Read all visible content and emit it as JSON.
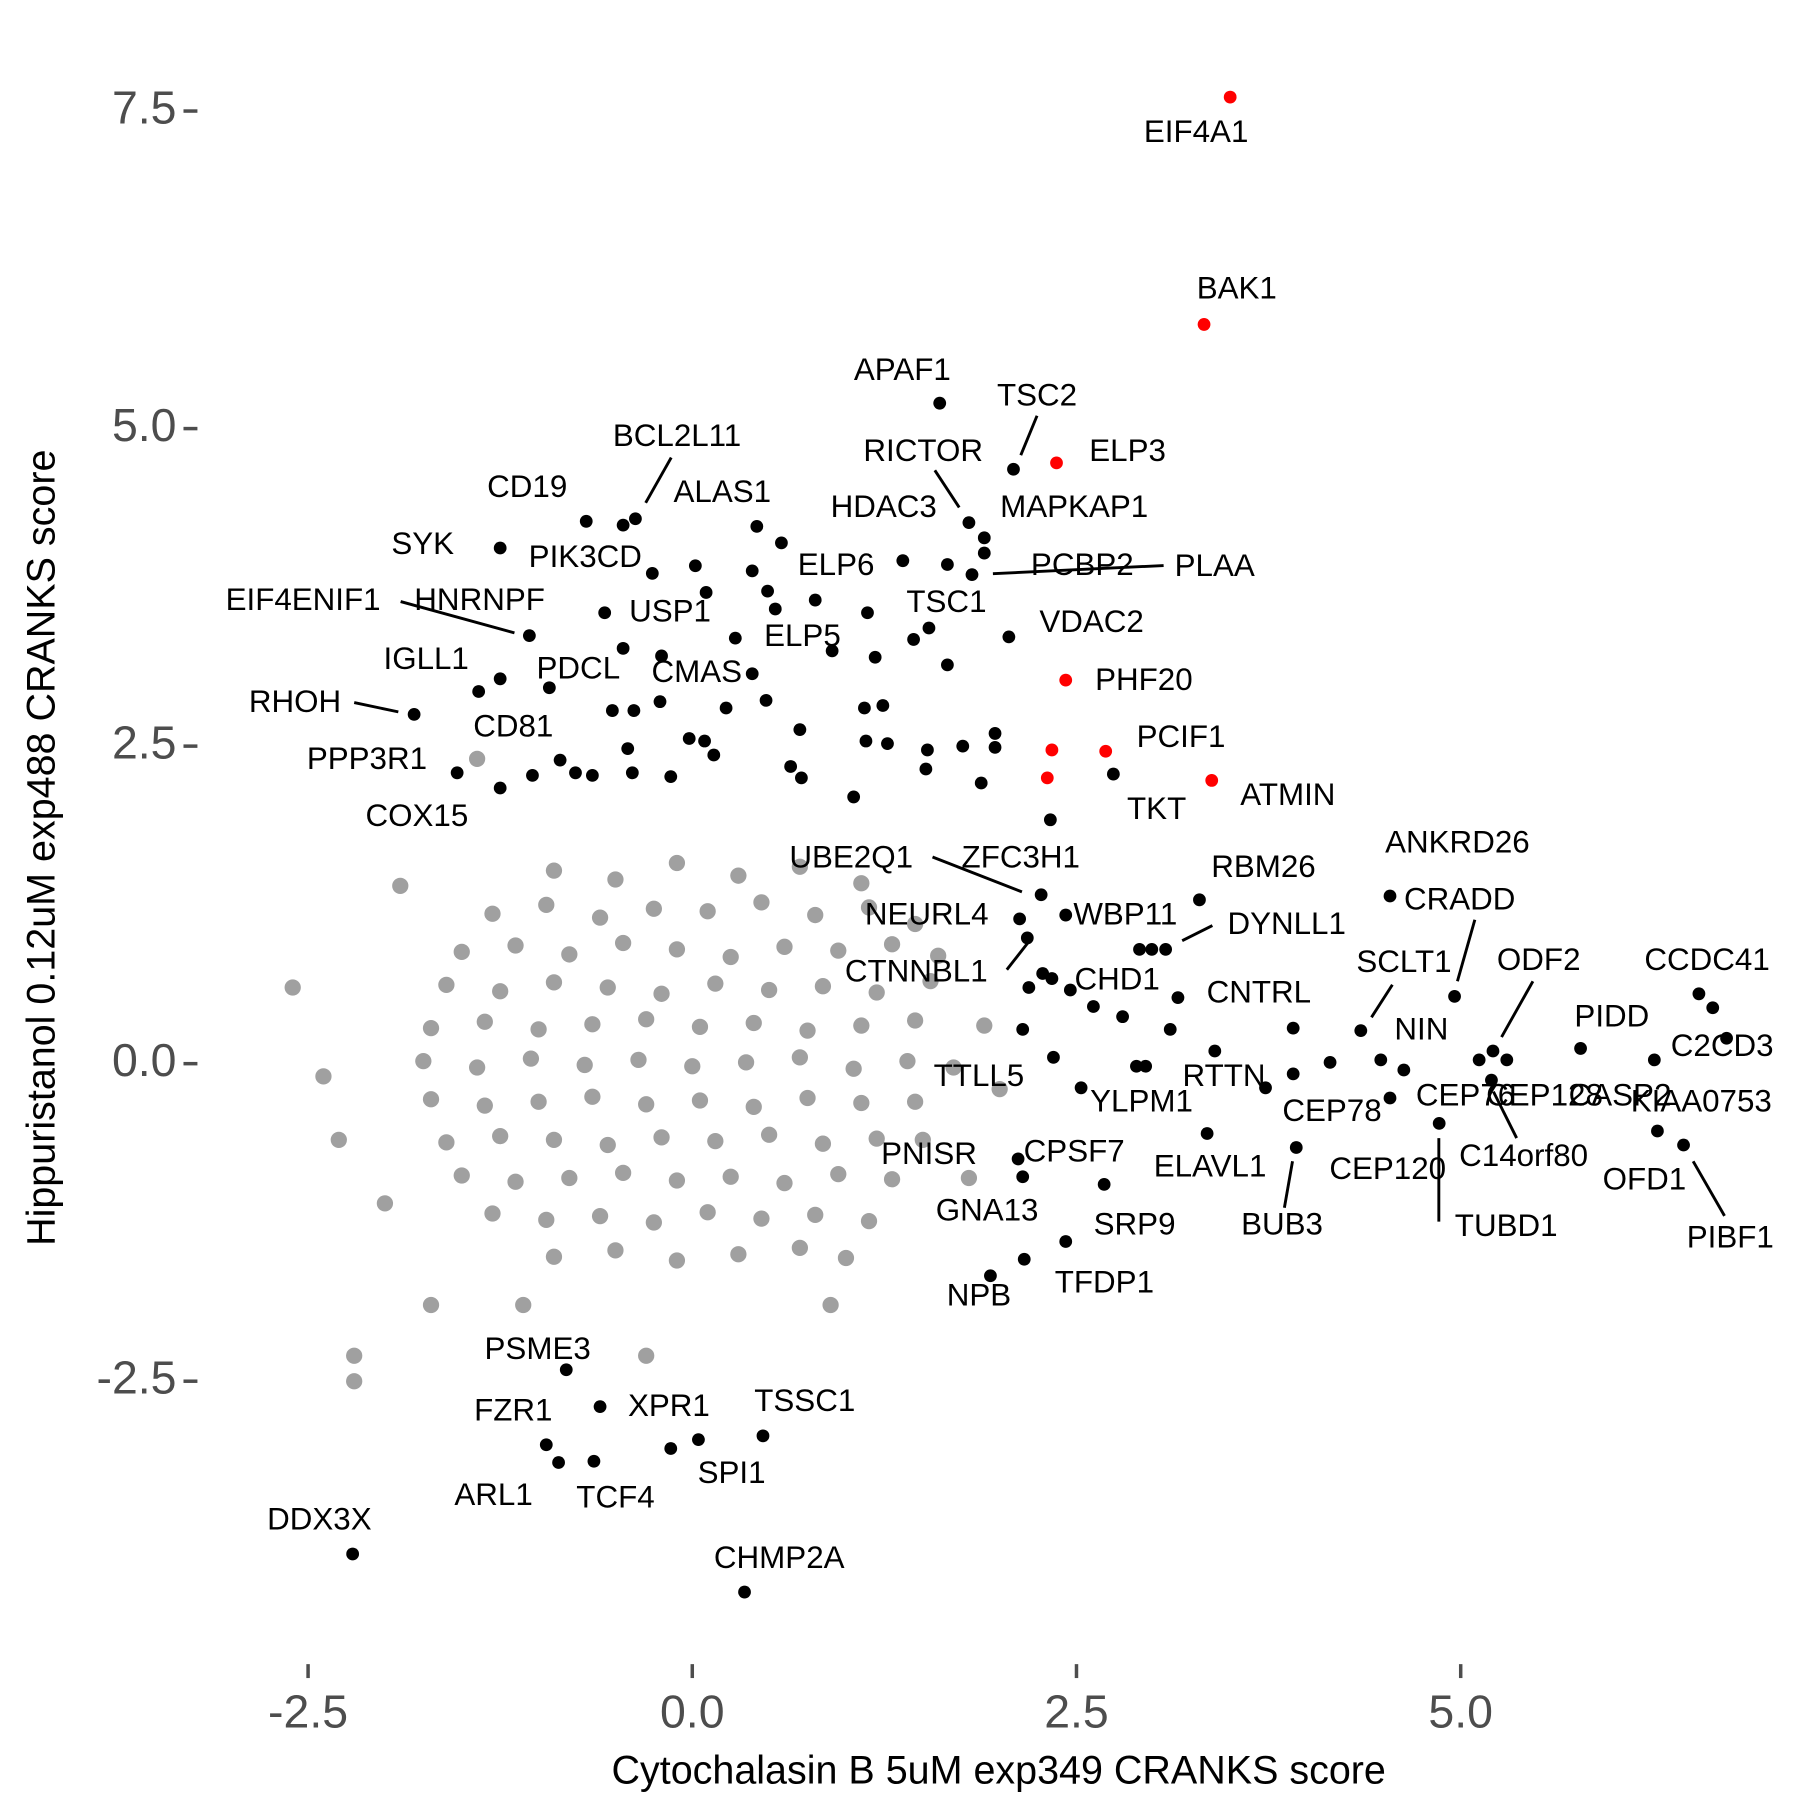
{
  "chart_data": {
    "type": "scatter",
    "xlabel": "Cytochalasin B 5uM exp349 CRANKS score",
    "ylabel": "Hippuristanol 0.12uM exp488 CRANKS score",
    "xlim": [
      -3.22,
      7.17
    ],
    "ylim": [
      -4.7,
      8.1
    ],
    "xticks": [
      -2.5,
      {
        "value": 0,
        "label": "0.0"
      },
      2.5,
      {
        "value": 5,
        "label": "5.0"
      }
    ],
    "yticks": [
      -2.5,
      {
        "value": 0,
        "label": "0.0"
      },
      2.5,
      {
        "value": 5,
        "label": "5.0"
      },
      7.5
    ],
    "grid": false,
    "series": [
      {
        "color": "#a0a0a0",
        "x": [
          -0.9,
          -0.5,
          -0.1,
          0.3,
          0.7,
          1.1,
          -1.3,
          -0.95,
          -0.6,
          -0.25,
          0.1,
          0.45,
          0.8,
          1.15,
          1.45,
          -1.5,
          -1.15,
          -0.8,
          -0.45,
          -0.1,
          0.25,
          0.6,
          0.95,
          1.3,
          1.6,
          -1.6,
          -1.25,
          -0.9,
          -0.55,
          -0.2,
          0.15,
          0.5,
          0.85,
          1.2,
          1.55,
          -1.7,
          -1.35,
          -1.0,
          -0.65,
          -0.3,
          0.05,
          0.4,
          0.75,
          1.1,
          1.45,
          -1.75,
          -1.4,
          -1.05,
          -0.7,
          -0.35,
          0,
          0.35,
          0.7,
          1.05,
          1.4,
          1.7,
          -1.7,
          -1.35,
          -1.0,
          -0.65,
          -0.3,
          0.05,
          0.4,
          0.75,
          1.1,
          1.45,
          -1.6,
          -1.25,
          -0.9,
          -0.55,
          -0.2,
          0.15,
          0.5,
          0.85,
          1.2,
          1.5,
          -1.5,
          -1.15,
          -0.8,
          -0.45,
          -0.1,
          0.25,
          0.6,
          0.95,
          1.3,
          -1.3,
          -0.95,
          -0.6,
          -0.25,
          0.1,
          0.45,
          0.8,
          1.15,
          -0.9,
          -0.5,
          -0.1,
          0.3,
          0.7,
          1.0,
          -2.6,
          -2.4,
          -2.3,
          -2.2,
          -2.0,
          -1.9,
          -1.7,
          -2.2,
          -1.4,
          1.9,
          2.0,
          1.8,
          -0.3,
          0.9,
          -1.1
        ],
        "values": [
          1.52,
          1.45,
          1.58,
          1.48,
          1.55,
          1.42,
          1.18,
          1.25,
          1.15,
          1.22,
          1.2,
          1.27,
          1.17,
          1.23,
          1.1,
          0.88,
          0.93,
          0.86,
          0.95,
          0.9,
          0.84,
          0.92,
          0.89,
          0.94,
          0.85,
          0.62,
          0.57,
          0.64,
          0.6,
          0.55,
          0.63,
          0.58,
          0.61,
          0.56,
          0.65,
          0.28,
          0.33,
          0.27,
          0.31,
          0.35,
          0.29,
          0.32,
          0.26,
          0.3,
          0.34,
          0.02,
          -0.03,
          0.04,
          -0.01,
          0.03,
          -0.02,
          0.01,
          0.05,
          -0.04,
          0.02,
          -0.03,
          -0.28,
          -0.33,
          -0.3,
          -0.26,
          -0.32,
          -0.29,
          -0.34,
          -0.27,
          -0.31,
          -0.3,
          -0.62,
          -0.57,
          -0.6,
          -0.64,
          -0.58,
          -0.61,
          -0.56,
          -0.63,
          -0.59,
          -0.6,
          -0.88,
          -0.93,
          -0.9,
          -0.86,
          -0.92,
          -0.89,
          -0.94,
          -0.87,
          -0.91,
          -1.18,
          -1.23,
          -1.2,
          -1.25,
          -1.17,
          -1.22,
          -1.19,
          -1.24,
          -1.52,
          -1.47,
          -1.55,
          -1.5,
          -1.45,
          -1.53,
          0.6,
          -0.1,
          -0.6,
          -2.3,
          -1.1,
          1.4,
          -1.9,
          -2.5,
          2.4,
          0.3,
          -0.2,
          -0.9,
          -2.3,
          -1.9,
          -1.9
        ]
      },
      {
        "color": "#000000",
        "labels": [
          "APAF1",
          "TSC2",
          "RICTOR",
          "HDAC3",
          "MAPKAP1",
          "PCBP2",
          "PLAA",
          "TSC1",
          "VDAC2",
          "BCL2L11",
          "ALAS1",
          "CD19",
          "SYK",
          "PIK3CD",
          "EIF4ENIF1",
          "HNRNPF",
          "USP1",
          "IGLL1",
          "PDCL",
          "CMAS",
          "ELP5",
          "ELP6",
          "RHOH",
          "CD81",
          "PPP3R1",
          "COX15",
          "TKT",
          "UBE2Q1",
          "ZFC3H1",
          "NEURL4",
          "WBP11",
          "DYNLL1",
          "RBM26",
          "CTNNBL1",
          "CHD1",
          "CNTRL",
          "ANKRD26",
          "CRADD",
          "SCLT1",
          "NIN",
          "ODF2",
          "CCDC41",
          "PIDD",
          "C2CD3",
          "KIAA0753",
          "CEP76",
          "CEP128",
          "CASP2",
          "C14orf80",
          "OFD1",
          "PIBF1",
          "CEP120",
          "CEP78",
          "RTTN",
          "TUBD1",
          "BUB3",
          "ELAVL1",
          "YLPM1",
          "TTLL5",
          "CPSF7",
          "PNISR",
          "GNA13",
          "SRP9",
          "TFDP1",
          "NPB",
          "PSME3",
          "FZR1",
          "XPR1",
          "ARL1",
          "TCF4",
          "SPI1",
          "TSSC1",
          "DDX3X",
          "CHMP2A",
          null,
          null,
          null,
          null,
          null,
          null,
          null,
          null,
          null,
          null,
          null,
          null,
          null,
          null,
          null,
          null,
          null,
          null,
          null,
          null,
          null,
          null,
          null,
          null,
          null,
          null,
          null,
          null,
          null,
          null,
          null,
          null,
          null,
          null,
          null,
          null,
          null,
          null,
          null,
          null,
          null,
          null,
          null,
          null,
          null,
          null,
          null,
          null,
          null,
          null,
          null,
          null,
          null,
          null,
          null,
          null,
          null
        ],
        "x": [
          1.61,
          2.09,
          1.8,
          1.66,
          1.9,
          1.9,
          1.82,
          1.54,
          2.06,
          -0.37,
          0.42,
          -0.69,
          -1.25,
          -0.26,
          -1.06,
          -0.57,
          -0.45,
          -1.25,
          -0.93,
          -0.21,
          0.28,
          0.8,
          -1.81,
          -1.39,
          -1.53,
          -1.25,
          2.74,
          2.27,
          2.33,
          2.13,
          2.43,
          3.08,
          3.3,
          2.18,
          2.61,
          3.16,
          4.54,
          4.96,
          4.35,
          4.48,
          5.21,
          6.55,
          5.78,
          6.73,
          6.64,
          5.12,
          5.3,
          6.26,
          5.2,
          6.28,
          6.45,
          4.54,
          3.91,
          3.73,
          4.86,
          3.93,
          3.35,
          2.53,
          2.35,
          2.68,
          2.12,
          2.15,
          2.43,
          2.16,
          1.94,
          -0.82,
          -0.95,
          -0.6,
          -0.87,
          -0.64,
          0.04,
          0.46,
          -2.21,
          0.34,
          -0.45,
          1.37,
          0.02,
          0.09,
          0.39,
          0.49,
          0.58,
          0.54,
          1.14,
          0.91,
          1.19,
          1.44,
          1.66,
          -0.2,
          -0.52,
          -0.38,
          0.22,
          0.39,
          0.48,
          -0.02,
          0.08,
          -0.42,
          -0.39,
          -0.86,
          -0.76,
          -0.65,
          -0.14,
          -1.04,
          0.14,
          0.7,
          1.12,
          1.24,
          1.13,
          1.27,
          1.05,
          0.64,
          0.71,
          1.53,
          1.76,
          1.97,
          1.52,
          1.88,
          1.97,
          2.28,
          2.34,
          2.19,
          2.46,
          2.8,
          2.89,
          2.95,
          2.91,
          2.99,
          2.15,
          3.4,
          4.15,
          3.91,
          4.63,
          3.11,
          -0.14
        ],
        "values": [
          5.2,
          4.68,
          4.26,
          3.93,
          4.14,
          4.02,
          3.85,
          3.43,
          3.36,
          4.29,
          4.23,
          4.27,
          4.06,
          3.86,
          3.37,
          3.55,
          3.27,
          3.03,
          2.96,
          2.85,
          3.35,
          3.65,
          2.75,
          2.93,
          2.29,
          2.17,
          2.28,
          1.33,
          1.92,
          1.14,
          1.17,
          0.9,
          1.29,
          0.99,
          0.45,
          0.52,
          1.32,
          0.53,
          0.26,
          0.03,
          0.1,
          0.55,
          0.12,
          0.2,
          0.44,
          0.03,
          0.03,
          0.03,
          -0.13,
          -0.53,
          -0.64,
          -0.27,
          -0.08,
          -0.19,
          -0.47,
          -0.66,
          -0.55,
          -0.19,
          0.05,
          -0.95,
          -0.75,
          -0.89,
          -1.4,
          -1.54,
          -1.67,
          -2.41,
          -3.0,
          -2.7,
          -3.14,
          -3.13,
          -2.96,
          -2.93,
          -3.86,
          -4.16,
          4.24,
          3.96,
          3.92,
          3.71,
          3.88,
          3.72,
          4.1,
          3.58,
          3.55,
          3.25,
          3.2,
          3.34,
          3.14,
          3.21,
          2.78,
          2.78,
          2.8,
          3.07,
          2.86,
          2.56,
          2.54,
          2.48,
          2.29,
          2.39,
          2.29,
          2.27,
          2.26,
          2.27,
          2.43,
          2.63,
          2.8,
          2.82,
          2.54,
          2.52,
          2.1,
          2.34,
          2.25,
          2.47,
          2.5,
          2.6,
          2.32,
          2.21,
          2.49,
          0.71,
          0.67,
          0.6,
          0.58,
          0.37,
          -0.02,
          -0.02,
          0.9,
          0.9,
          0.27,
          0.1,
          0.01,
          0.28,
          -0.05,
          0.27,
          -3.03
        ]
      },
      {
        "color": "#ff0000",
        "labels": [
          "EIF4A1",
          "BAK1",
          "ELP3",
          "PHF20",
          "PCIF1",
          "ATMIN",
          null,
          null
        ],
        "x": [
          3.5,
          3.33,
          2.37,
          2.43,
          2.69,
          3.38,
          2.34,
          2.31
        ],
        "values": [
          7.61,
          5.82,
          4.73,
          3.02,
          2.46,
          2.23,
          2.47,
          2.25
        ]
      }
    ]
  }
}
